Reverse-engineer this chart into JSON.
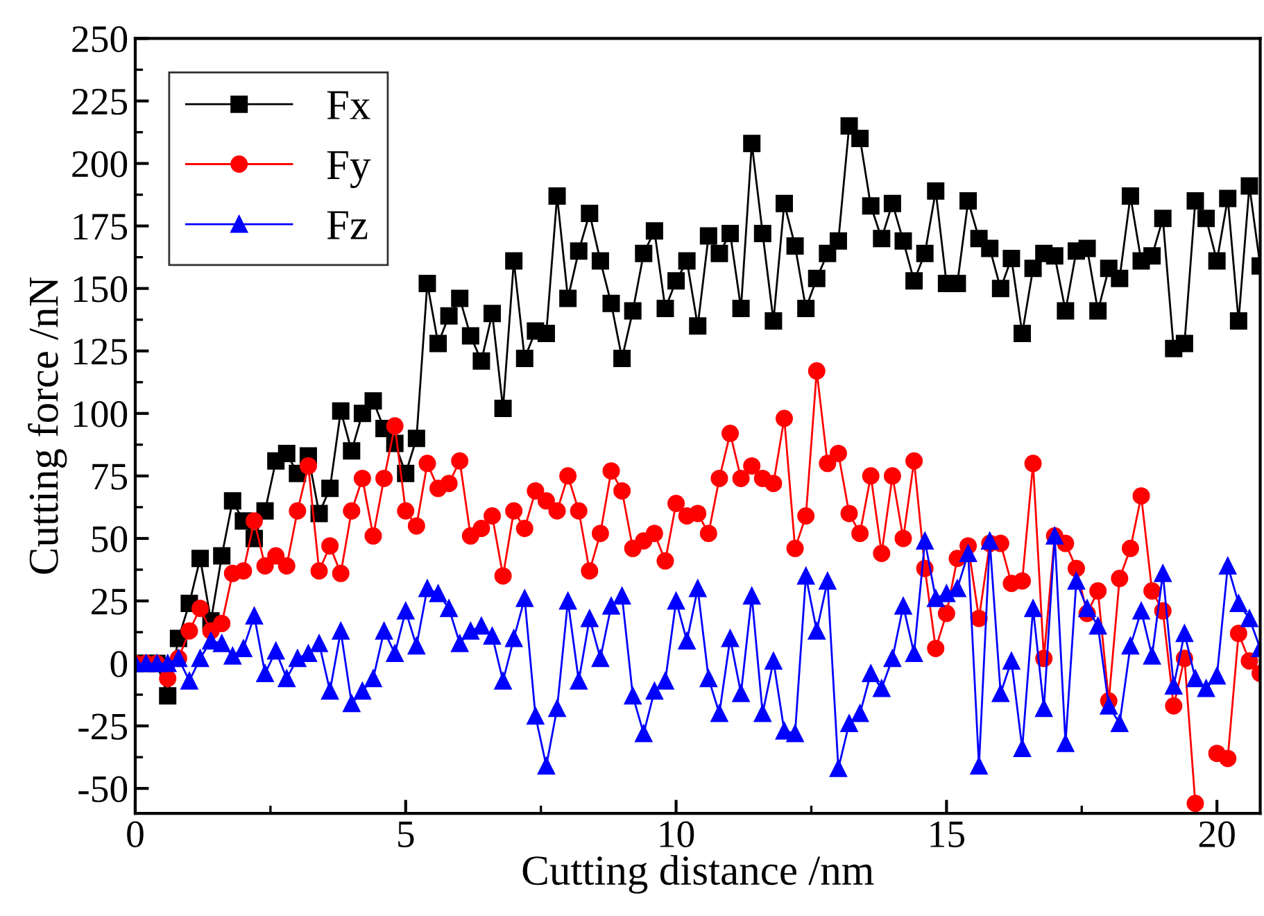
{
  "chart_data": {
    "type": "line",
    "xlabel": "Cutting distance /nm",
    "ylabel": "Cutting force /nN",
    "x": [
      0,
      0.2,
      0.4,
      0.6,
      0.8,
      1.0,
      1.2,
      1.4,
      1.6,
      1.8,
      2.0,
      2.2,
      2.4,
      2.6,
      2.8,
      3.0,
      3.2,
      3.4,
      3.6,
      3.8,
      4.0,
      4.2,
      4.4,
      4.6,
      4.8,
      5.0,
      5.2,
      5.4,
      5.6,
      5.8,
      6.0,
      6.2,
      6.4,
      6.6,
      6.8,
      7.0,
      7.2,
      7.4,
      7.6,
      7.8,
      8.0,
      8.2,
      8.4,
      8.6,
      8.8,
      9.0,
      9.2,
      9.4,
      9.6,
      9.8,
      10.0,
      10.2,
      10.4,
      10.6,
      10.8,
      11.0,
      11.2,
      11.4,
      11.6,
      11.8,
      12.0,
      12.2,
      12.4,
      12.6,
      12.8,
      13.0,
      13.2,
      13.4,
      13.6,
      13.8,
      14.0,
      14.2,
      14.4,
      14.6,
      14.8,
      15.0,
      15.2,
      15.4,
      15.6,
      15.8,
      16.0,
      16.2,
      16.4,
      16.6,
      16.8,
      17.0,
      17.2,
      17.4,
      17.6,
      17.8,
      18.0,
      18.2,
      18.4,
      18.6,
      18.8,
      19.0,
      19.2,
      19.4,
      19.6,
      19.8,
      20.0,
      20.2,
      20.4,
      20.6,
      20.8
    ],
    "series": [
      {
        "name": "Fx",
        "color": "#000000",
        "marker": "square",
        "values": [
          0,
          0,
          0,
          -13,
          10,
          24,
          42,
          17,
          43,
          65,
          57,
          50,
          61,
          81,
          84,
          76,
          83,
          60,
          70,
          101,
          85,
          100,
          105,
          94,
          88,
          76,
          90,
          152,
          128,
          139,
          146,
          131,
          121,
          140,
          102,
          161,
          122,
          133,
          132,
          187,
          146,
          165,
          180,
          161,
          144,
          122,
          141,
          164,
          173,
          142,
          153,
          161,
          135,
          171,
          164,
          172,
          142,
          208,
          172,
          137,
          184,
          167,
          142,
          154,
          164,
          169,
          215,
          210,
          183,
          170,
          184,
          169,
          153,
          164,
          189,
          152,
          152,
          185,
          170,
          166,
          150,
          162,
          132,
          158,
          164,
          163,
          141,
          165,
          166,
          141,
          158,
          154,
          187,
          161,
          163,
          178,
          126,
          128,
          185,
          178,
          161,
          186,
          137,
          191,
          159
        ]
      },
      {
        "name": "Fy",
        "color": "#ff0000",
        "marker": "circle",
        "values": [
          0,
          0,
          0,
          -6,
          2,
          13,
          22,
          13,
          16,
          36,
          37,
          57,
          39,
          43,
          39,
          61,
          79,
          37,
          47,
          36,
          61,
          74,
          51,
          74,
          95,
          61,
          55,
          80,
          70,
          72,
          81,
          51,
          54,
          59,
          35,
          61,
          54,
          69,
          65,
          61,
          75,
          61,
          37,
          52,
          77,
          69,
          46,
          49,
          52,
          41,
          64,
          59,
          60,
          52,
          74,
          92,
          74,
          79,
          74,
          72,
          98,
          46,
          59,
          117,
          80,
          84,
          60,
          52,
          75,
          44,
          75,
          50,
          81,
          38,
          6,
          20,
          42,
          47,
          18,
          48,
          48,
          32,
          33,
          80,
          2,
          51,
          48,
          38,
          20,
          29,
          -15,
          34,
          46,
          67,
          29,
          21,
          -17,
          2,
          -56,
          null,
          -36,
          -38,
          12,
          1,
          -4
        ]
      },
      {
        "name": "Fz",
        "color": "#0000ff",
        "marker": "triangle",
        "values": [
          0,
          0,
          0,
          0,
          2,
          -7,
          2,
          9,
          8,
          3,
          6,
          19,
          -4,
          5,
          -6,
          2,
          4,
          8,
          -11,
          13,
          -16,
          -11,
          -6,
          13,
          4,
          21,
          7,
          30,
          28,
          22,
          8,
          13,
          15,
          11,
          -7,
          10,
          26,
          -21,
          -41,
          -18,
          25,
          -7,
          18,
          2,
          23,
          27,
          -13,
          -28,
          -11,
          -7,
          25,
          9,
          30,
          -6,
          -20,
          10,
          -12,
          27,
          -20,
          1,
          -27,
          -28,
          35,
          13,
          33,
          -42,
          -24,
          -20,
          -4,
          -10,
          2,
          23,
          4,
          49,
          26,
          28,
          30,
          44,
          -41,
          49,
          -12,
          1,
          -34,
          22,
          -18,
          51,
          -32,
          33,
          22,
          15,
          -17,
          -24,
          7,
          21,
          3,
          36,
          -9,
          12,
          -6,
          -10,
          -5,
          39,
          24,
          18,
          6
        ]
      }
    ],
    "xlim": [
      0,
      20.8
    ],
    "xticks": [
      0,
      5,
      10,
      15,
      20
    ],
    "ylim": [
      -60,
      250
    ],
    "yticks": [
      -50,
      -25,
      0,
      25,
      50,
      75,
      100,
      125,
      150,
      175,
      200,
      225,
      250
    ],
    "grid": false,
    "legend": "top left",
    "line_style": "solid"
  }
}
